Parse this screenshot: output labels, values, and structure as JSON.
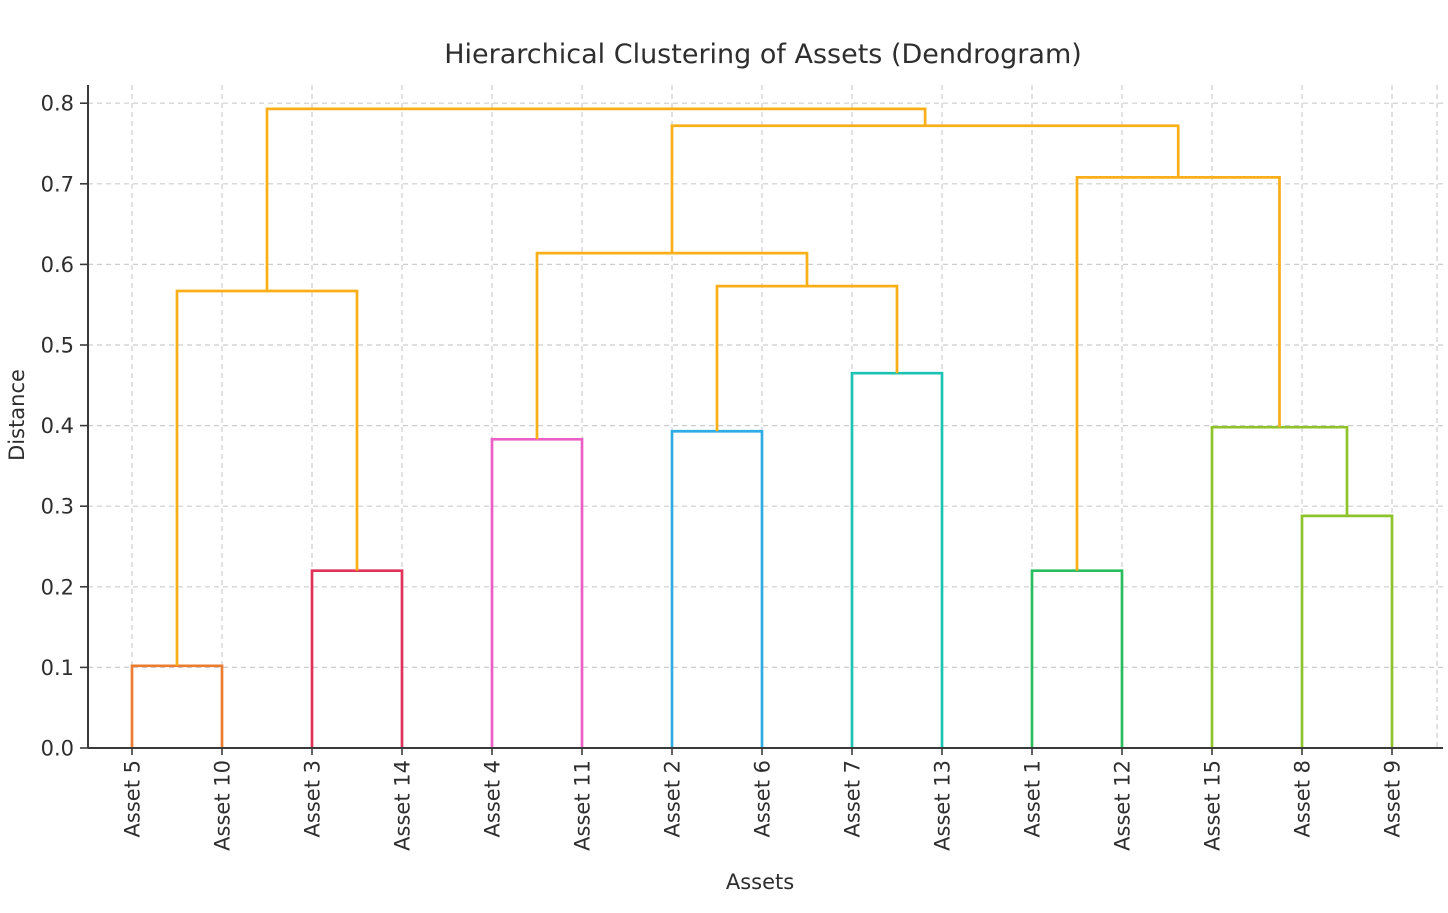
{
  "chart_data": {
    "type": "dendrogram",
    "title": "Hierarchical Clustering of Assets (Dendrogram)",
    "xlabel": "Assets",
    "ylabel": "Distance",
    "ylim": [
      0.0,
      0.82
    ],
    "grid": true,
    "legend": "none",
    "y_ticks": [
      {
        "value": 0.0,
        "label": "0.0"
      },
      {
        "value": 0.1,
        "label": "0.1"
      },
      {
        "value": 0.2,
        "label": "0.2"
      },
      {
        "value": 0.3,
        "label": "0.3"
      },
      {
        "value": 0.4,
        "label": "0.4"
      },
      {
        "value": 0.5,
        "label": "0.5"
      },
      {
        "value": 0.6,
        "label": "0.6"
      },
      {
        "value": 0.7,
        "label": "0.7"
      },
      {
        "value": 0.8,
        "label": "0.8"
      }
    ],
    "leaves": [
      "Asset 5",
      "Asset 10",
      "Asset 3",
      "Asset 14",
      "Asset 4",
      "Asset 11",
      "Asset 2",
      "Asset 6",
      "Asset 7",
      "Asset 13",
      "Asset 1",
      "Asset 12",
      "Asset 15",
      "Asset 8",
      "Asset 9"
    ],
    "merges": [
      {
        "id": "M0",
        "left": "L0",
        "right": "L1",
        "height": 0.102,
        "color": "#EC7C2F",
        "note": "Asset 5 + Asset 10"
      },
      {
        "id": "M1",
        "left": "L2",
        "right": "L3",
        "height": 0.22,
        "color": "#E1335A",
        "note": "Asset 3 + Asset 14"
      },
      {
        "id": "M2",
        "left": "L4",
        "right": "L5",
        "height": 0.383,
        "color": "#EC5FC6",
        "note": "Asset 4 + Asset 11"
      },
      {
        "id": "M3",
        "left": "L6",
        "right": "L7",
        "height": 0.393,
        "color": "#2FACE3",
        "note": "Asset 2 + Asset 6"
      },
      {
        "id": "M4",
        "left": "L8",
        "right": "L9",
        "height": 0.465,
        "color": "#1DC3B2",
        "note": "Asset 7 + Asset 13"
      },
      {
        "id": "M5",
        "left": "L10",
        "right": "L11",
        "height": 0.22,
        "color": "#29BD5F",
        "note": "Asset 1 + Asset 12"
      },
      {
        "id": "M6",
        "left": "L13",
        "right": "L14",
        "height": 0.288,
        "color": "#8EC32C",
        "note": "Asset 8 + Asset 9"
      },
      {
        "id": "M7",
        "left": "L12",
        "right": "M6",
        "height": 0.398,
        "color": "#8EC32C",
        "note": "Asset 15 + (Asset 8, Asset 9)"
      },
      {
        "id": "M8",
        "left": "M0",
        "right": "M1",
        "height": 0.567,
        "color": "#FAAF18",
        "note": "(5,10) + (3,14)"
      },
      {
        "id": "M9",
        "left": "M3",
        "right": "M4",
        "height": 0.573,
        "color": "#FAAF18",
        "note": "(2,6) + (7,13)"
      },
      {
        "id": "M10",
        "left": "M2",
        "right": "M9",
        "height": 0.614,
        "color": "#FAAF18",
        "note": "(4,11) + ((2,6),(7,13))"
      },
      {
        "id": "M11",
        "left": "M5",
        "right": "M7",
        "height": 0.708,
        "color": "#FAAF18",
        "note": "(1,12) + (15,8,9)"
      },
      {
        "id": "M12",
        "left": "M10",
        "right": "M11",
        "height": 0.772,
        "color": "#FAAF18",
        "note": "middle + right superclusters"
      },
      {
        "id": "M13",
        "left": "M8",
        "right": "M12",
        "height": 0.793,
        "color": "#FAAF18",
        "note": "root"
      }
    ],
    "colors": {
      "above_threshold_link": "#FAAF18",
      "axis": "#3a3a3a",
      "text": "#2e2e2e",
      "grid": "#cdcdcd",
      "background": "#ffffff"
    }
  }
}
